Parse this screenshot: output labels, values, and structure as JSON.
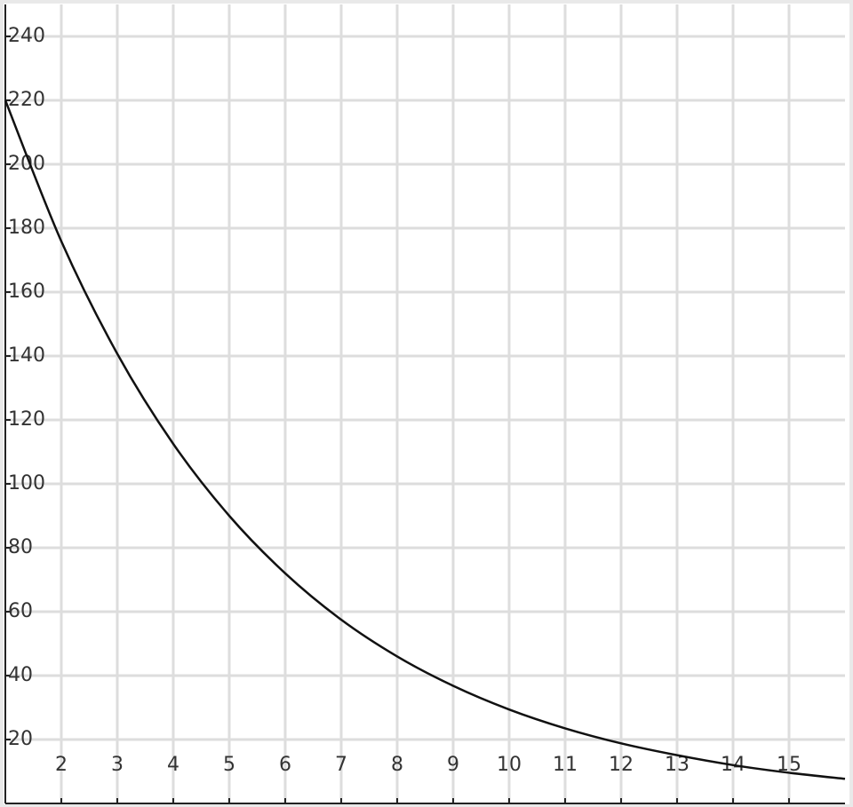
{
  "chart_data": {
    "type": "line",
    "x": [
      1,
      2,
      3,
      4,
      5,
      6,
      7,
      8,
      9,
      10,
      11,
      12,
      13,
      14,
      15,
      16
    ],
    "series": [
      {
        "color": "#111111",
        "values": [
          220,
          175.9,
          140.7,
          112.5,
          90.0,
          72.0,
          57.5,
          46.0,
          36.8,
          29.4,
          23.5,
          18.8,
          15.1,
          12.0,
          9.6,
          7.7
        ]
      }
    ],
    "xlim": [
      1,
      16
    ],
    "ylim": [
      0,
      250
    ],
    "xticks": [
      2,
      3,
      4,
      5,
      6,
      7,
      8,
      9,
      10,
      11,
      12,
      13,
      14,
      15
    ],
    "yticks": [
      20,
      40,
      60,
      80,
      100,
      120,
      140,
      160,
      180,
      200,
      220,
      240
    ],
    "grid": true
  }
}
